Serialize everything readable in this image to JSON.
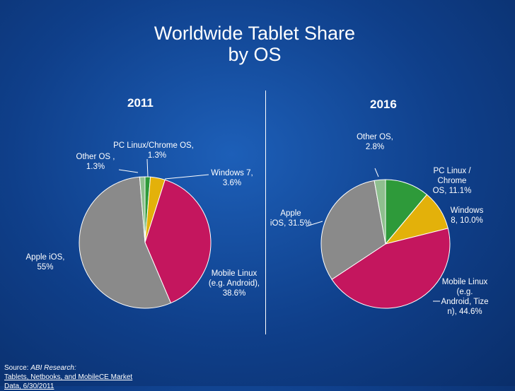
{
  "title_line1": "Worldwide Tablet Share",
  "title_line2": "by OS",
  "source": {
    "prefix": "Source: ",
    "publisher": "ABI Research:",
    "line2": "Tablets, Netbooks, and MobileCE Market",
    "line3": "Data, 6/30/2011"
  },
  "colors": {
    "green": "#2e9a3a",
    "yellow": "#e3b10a",
    "magenta": "#c4165e",
    "gray": "#8a8a8a",
    "light_green": "#8fbf8f"
  },
  "chart_data": [
    {
      "type": "pie",
      "title": "2011",
      "slices": [
        {
          "name": "PC Linux/Chrome OS",
          "value": 1.3,
          "label_line1": "PC Linux/Chrome OS,",
          "label_line2": "1.3%",
          "color": "#2e9a3a"
        },
        {
          "name": "Windows 7",
          "value": 3.6,
          "label_line1": "Windows 7,",
          "label_line2": "3.6%",
          "color": "#e3b10a"
        },
        {
          "name": "Mobile Linux (e.g. Android)",
          "value": 38.6,
          "label_line1": "Mobile Linux",
          "label_line2": "(e.g. Android),",
          "label_line3": "38.6%",
          "color": "#c4165e"
        },
        {
          "name": "Apple iOS",
          "value": 55,
          "label_line1": "Apple iOS,",
          "label_line2": "55%",
          "color": "#8a8a8a"
        },
        {
          "name": "Other OS",
          "value": 1.3,
          "label_line1": "Other OS ,",
          "label_line2": "1.3%",
          "color": "#8fbf8f"
        }
      ]
    },
    {
      "type": "pie",
      "title": "2016",
      "slices": [
        {
          "name": "PC Linux / Chrome OS",
          "value": 11.1,
          "label_line1": "PC Linux /",
          "label_line2": "Chrome",
          "label_line3": "OS, 11.1%",
          "color": "#2e9a3a"
        },
        {
          "name": "Windows 8",
          "value": 10.0,
          "label_line1": "Windows",
          "label_line2": "8, 10.0%",
          "color": "#e3b10a"
        },
        {
          "name": "Mobile Linux (e.g. Android, Tizen)",
          "value": 44.6,
          "label_line1": "Mobile Linux",
          "label_line2": "(e.g.",
          "label_line3": "Android, Tize",
          "label_line4": "n), 44.6%",
          "color": "#c4165e"
        },
        {
          "name": "Apple iOS",
          "value": 31.5,
          "label_line1": "Apple",
          "label_line2": "iOS, 31.5%",
          "color": "#8a8a8a"
        },
        {
          "name": "Other OS",
          "value": 2.8,
          "label_line1": "Other OS,",
          "label_line2": "2.8%",
          "color": "#8fbf8f"
        }
      ]
    }
  ]
}
